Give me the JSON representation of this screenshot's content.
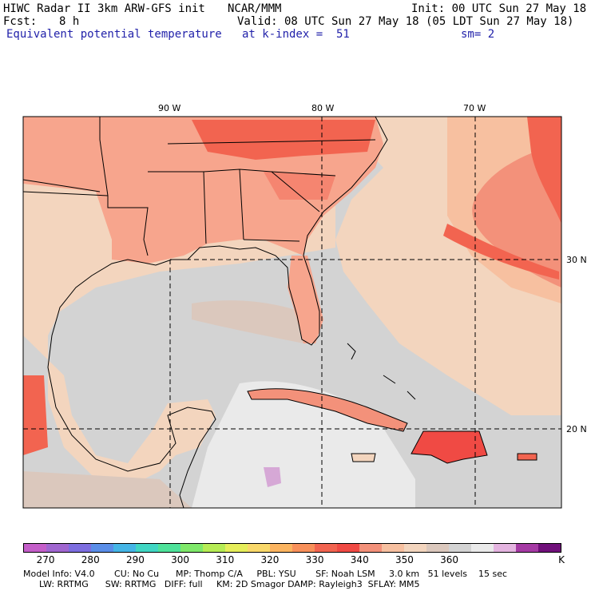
{
  "header": {
    "model_title": "HIWC Radar II 3km ARW-GFS init",
    "org": "NCAR/MMM",
    "init": "Init: 00 UTC Sun 27 May 18",
    "fcst_label": "Fcst:",
    "fcst_value": "8 h",
    "valid": "Valid: 08 UTC Sun 27 May 18 (05 LDT Sun 27 May 18)",
    "field": "Equivalent potential temperature",
    "level": "at k-index =  51",
    "smooth": "sm= 2"
  },
  "map": {
    "lon_labels": [
      "90 W",
      "80 W",
      "70 W"
    ],
    "lat_labels": [
      "30 N",
      "20 N"
    ]
  },
  "colorbar": {
    "labels": [
      "270",
      "280",
      "290",
      "300",
      "310",
      "320",
      "330",
      "340",
      "350",
      "360",
      "K"
    ],
    "colors": [
      "#c45ec9",
      "#a066d0",
      "#7d6ee0",
      "#5a8ee8",
      "#45b5e6",
      "#40d6c3",
      "#4ee29a",
      "#7fe86a",
      "#b6ec55",
      "#e6ee5a",
      "#f9d86a",
      "#fbb460",
      "#f8905a",
      "#f26450",
      "#f04a44",
      "#f3917a",
      "#f7c0a0",
      "#f3d5be",
      "#dbc8bd",
      "#d3d3d3",
      "#eaeaea",
      "#e4b4e0",
      "#a53aa4",
      "#70107a"
    ]
  },
  "footer": {
    "line1": "Model Info: V4.0       CU: No Cu      MP: Thomp C/A     PBL: YSU       SF: Noah LSM     3.0 km   51 levels    15 sec",
    "line2": "LW: RRTMG      SW: RRTMG   DIFF: full     KM: 2D Smagor DAMP: Rayleigh3  SFLAY: MM5"
  }
}
